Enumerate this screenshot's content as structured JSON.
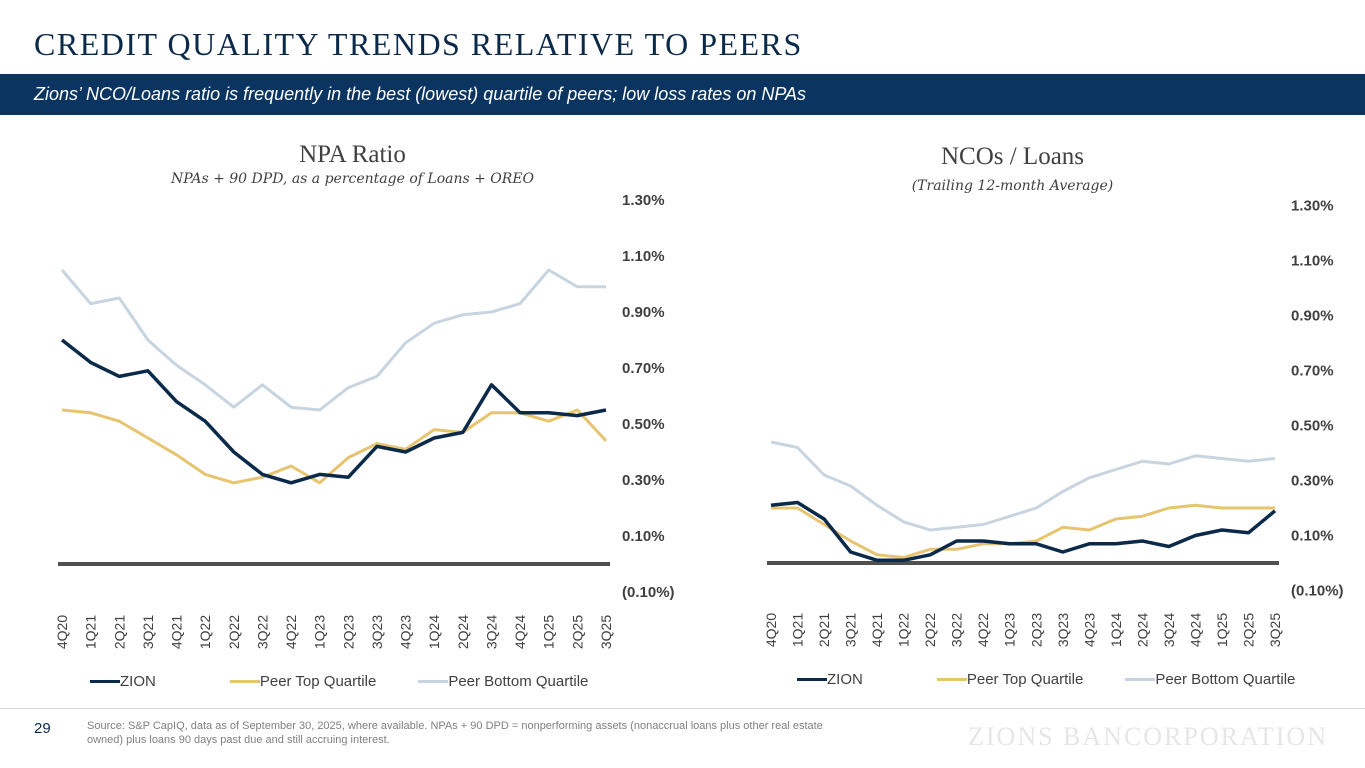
{
  "header": {
    "title": "CREDIT QUALITY TRENDS RELATIVE TO PEERS",
    "banner": "Zions’ NCO/Loans ratio is frequently in the best (lowest) quartile of peers; low loss rates on NPAs"
  },
  "colors": {
    "banner": "#0b3560",
    "zion": "#0b2a4a",
    "peer_top": "#e6c470",
    "peer_bottom": "#c8d5e0",
    "baseline": "#505050"
  },
  "chart_data": [
    {
      "type": "line",
      "title": "NPA Ratio",
      "subtitle": "NPAs + 90 DPD, as a percentage of Loans + OREO",
      "xlabel": "",
      "ylabel": "",
      "ylim": [
        -0.1,
        1.3
      ],
      "y_ticks": [
        "1.30%",
        "1.10%",
        "0.90%",
        "0.70%",
        "0.50%",
        "0.30%",
        "0.10%",
        "(0.10%)"
      ],
      "y_tick_values": [
        1.3,
        1.1,
        0.9,
        0.7,
        0.5,
        0.3,
        0.1,
        -0.1
      ],
      "y_axis_position": "right",
      "legend_position": "bottom",
      "categories": [
        "4Q20",
        "1Q21",
        "2Q21",
        "3Q21",
        "4Q21",
        "1Q22",
        "2Q22",
        "3Q22",
        "4Q22",
        "1Q23",
        "2Q23",
        "3Q23",
        "4Q23",
        "1Q24",
        "2Q24",
        "3Q24",
        "4Q24",
        "1Q25",
        "2Q25",
        "3Q25"
      ],
      "series": [
        {
          "name": "ZION",
          "key": "zion",
          "values": [
            0.8,
            0.72,
            0.67,
            0.69,
            0.58,
            0.51,
            0.4,
            0.32,
            0.29,
            0.32,
            0.31,
            0.42,
            0.4,
            0.45,
            0.47,
            0.64,
            0.54,
            0.54,
            0.53,
            0.55
          ]
        },
        {
          "name": "Peer Top Quartile",
          "key": "peer_top",
          "values": [
            0.55,
            0.54,
            0.51,
            0.45,
            0.39,
            0.32,
            0.29,
            0.31,
            0.35,
            0.29,
            0.38,
            0.43,
            0.41,
            0.48,
            0.47,
            0.54,
            0.54,
            0.51,
            0.55,
            0.44
          ]
        },
        {
          "name": "Peer Bottom Quartile",
          "key": "peer_bottom",
          "values": [
            1.05,
            0.93,
            0.95,
            0.8,
            0.71,
            0.64,
            0.56,
            0.64,
            0.56,
            0.55,
            0.63,
            0.67,
            0.79,
            0.86,
            0.89,
            0.9,
            0.93,
            1.05,
            0.99,
            0.99
          ]
        }
      ]
    },
    {
      "type": "line",
      "title": "NCOs / Loans",
      "subtitle": "(Trailing 12-month Average)",
      "xlabel": "",
      "ylabel": "",
      "ylim": [
        -0.1,
        1.3
      ],
      "y_ticks": [
        "1.30%",
        "1.10%",
        "0.90%",
        "0.70%",
        "0.50%",
        "0.30%",
        "0.10%",
        "(0.10%)"
      ],
      "y_tick_values": [
        1.3,
        1.1,
        0.9,
        0.7,
        0.5,
        0.3,
        0.1,
        -0.1
      ],
      "y_axis_position": "right",
      "legend_position": "bottom",
      "categories": [
        "4Q20",
        "1Q21",
        "2Q21",
        "3Q21",
        "4Q21",
        "1Q22",
        "2Q22",
        "3Q22",
        "4Q22",
        "1Q23",
        "2Q23",
        "3Q23",
        "4Q23",
        "1Q24",
        "2Q24",
        "3Q24",
        "4Q24",
        "1Q25",
        "2Q25",
        "3Q25"
      ],
      "series": [
        {
          "name": "ZION",
          "key": "zion",
          "values": [
            0.21,
            0.22,
            0.16,
            0.04,
            0.01,
            0.01,
            0.03,
            0.08,
            0.08,
            0.07,
            0.07,
            0.04,
            0.07,
            0.07,
            0.08,
            0.06,
            0.1,
            0.12,
            0.11,
            0.19
          ]
        },
        {
          "name": "Peer Top Quartile",
          "key": "peer_top",
          "values": [
            0.2,
            0.2,
            0.14,
            0.08,
            0.03,
            0.02,
            0.05,
            0.05,
            0.07,
            0.07,
            0.08,
            0.13,
            0.12,
            0.16,
            0.17,
            0.2,
            0.21,
            0.2,
            0.2,
            0.2
          ]
        },
        {
          "name": "Peer Bottom Quartile",
          "key": "peer_bottom",
          "values": [
            0.44,
            0.42,
            0.32,
            0.28,
            0.21,
            0.15,
            0.12,
            0.13,
            0.14,
            0.17,
            0.2,
            0.26,
            0.31,
            0.34,
            0.37,
            0.36,
            0.39,
            0.38,
            0.37,
            0.38
          ]
        }
      ]
    }
  ],
  "footer": {
    "page_number": "29",
    "source": "Source: S&P CapIQ, data as of September 30, 2025, where available. NPAs + 90 DPD = nonperforming assets (nonaccrual loans plus other real estate owned) plus loans 90 days past due and still accruing interest.",
    "brand": "ZIONS BANCORPORATION"
  }
}
